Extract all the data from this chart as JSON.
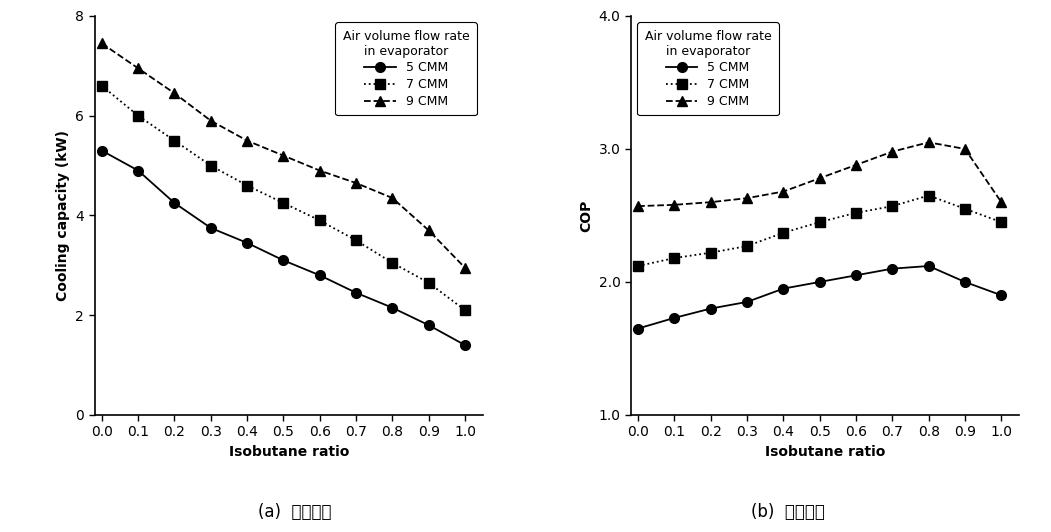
{
  "x": [
    0.0,
    0.1,
    0.2,
    0.3,
    0.4,
    0.5,
    0.6,
    0.7,
    0.8,
    0.9,
    1.0
  ],
  "cooling_5cmm": [
    5.3,
    4.9,
    4.25,
    3.75,
    3.45,
    3.1,
    2.8,
    2.45,
    2.15,
    1.8,
    1.4
  ],
  "cooling_7cmm": [
    6.6,
    6.0,
    5.5,
    5.0,
    4.6,
    4.25,
    3.9,
    3.5,
    3.05,
    2.65,
    2.1
  ],
  "cooling_9cmm": [
    7.45,
    6.95,
    6.45,
    5.9,
    5.5,
    5.2,
    4.9,
    4.65,
    4.35,
    3.7,
    2.95
  ],
  "cop_5cmm": [
    1.65,
    1.73,
    1.8,
    1.85,
    1.95,
    2.0,
    2.05,
    2.1,
    2.12,
    2.0,
    1.9
  ],
  "cop_7cmm": [
    2.12,
    2.18,
    2.22,
    2.27,
    2.37,
    2.45,
    2.52,
    2.57,
    2.65,
    2.55,
    2.45
  ],
  "cop_9cmm": [
    2.57,
    2.58,
    2.6,
    2.63,
    2.68,
    2.78,
    2.88,
    2.98,
    3.05,
    3.0,
    2.6
  ],
  "legend_title": "Air volume flow rate\nin evaporator",
  "legend_labels": [
    "5 CMM",
    "7 CMM",
    "9 CMM"
  ],
  "xlabel": "Isobutane ratio",
  "ylabel_a": "Cooling capacity (kW)",
  "ylabel_b": "COP",
  "caption_a": "(a)  냉방용량",
  "caption_b": "(b)  성능계수",
  "ylim_a": [
    0,
    8
  ],
  "ylim_b": [
    1.0,
    4.0
  ],
  "yticks_a": [
    0,
    2,
    4,
    6,
    8
  ],
  "yticks_b": [
    1.0,
    2.0,
    3.0,
    4.0
  ],
  "xticks": [
    0.0,
    0.1,
    0.2,
    0.3,
    0.4,
    0.5,
    0.6,
    0.7,
    0.8,
    0.9,
    1.0
  ],
  "line_color": "#000000",
  "marker_5": "o",
  "marker_7": "s",
  "marker_9": "^",
  "linestyle_5": "-",
  "linestyle_7": ":",
  "linestyle_9": "--",
  "markersize": 7,
  "linewidth": 1.3,
  "font_size": 10,
  "caption_font_size": 12,
  "legend_font_size": 9,
  "tick_font_size": 10
}
